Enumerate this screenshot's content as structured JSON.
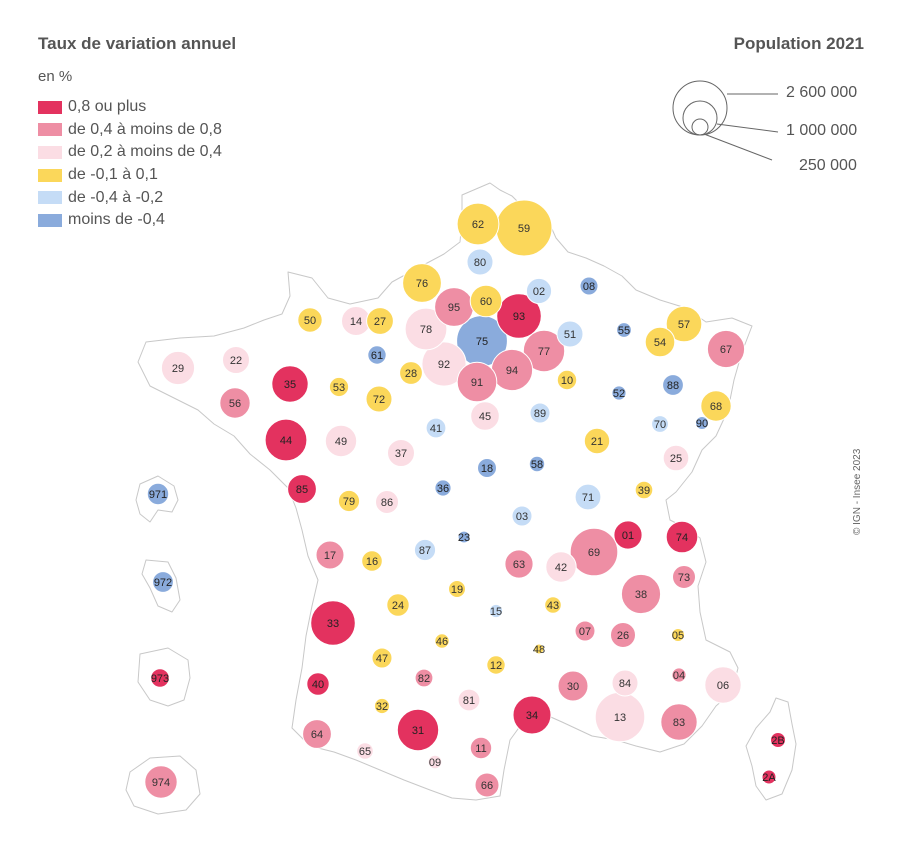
{
  "title": "Taux de variation annuel",
  "unit": "en %",
  "legend": [
    {
      "label": "0,8 ou plus",
      "color": "#e3325f"
    },
    {
      "label": "de 0,4 à moins de 0,8",
      "color": "#ee8ea4"
    },
    {
      "label": "de 0,2 à moins de 0,4",
      "color": "#fbdde4"
    },
    {
      "label": "de -0,1 à 0,1",
      "color": "#fbd75a"
    },
    {
      "label": "de -0,4 à  -0,2",
      "color": "#c5dcf6"
    },
    {
      "label": "moins de -0,4",
      "color": "#8aabdc"
    }
  ],
  "population_legend": {
    "title": "Population 2021",
    "values": [
      "2 600 000",
      "1 000 000",
      "250 000"
    ]
  },
  "credit": "© IGN - Insee 2023",
  "departments": [
    {
      "code": "59",
      "cls": 3,
      "pop": 2610000
    },
    {
      "code": "62",
      "cls": 3,
      "pop": 1460000
    },
    {
      "code": "80",
      "cls": 4,
      "pop": 566000
    },
    {
      "code": "02",
      "cls": 4,
      "pop": 526000
    },
    {
      "code": "08",
      "cls": 5,
      "pop": 269000
    },
    {
      "code": "76",
      "cls": 3,
      "pop": 1250000
    },
    {
      "code": "95",
      "cls": 1,
      "pop": 1250000
    },
    {
      "code": "60",
      "cls": 3,
      "pop": 830000
    },
    {
      "code": "93",
      "cls": 0,
      "pop": 1660000
    },
    {
      "code": "78",
      "cls": 2,
      "pop": 1450000
    },
    {
      "code": "75",
      "cls": 5,
      "pop": 2140000
    },
    {
      "code": "77",
      "cls": 1,
      "pop": 1430000
    },
    {
      "code": "92",
      "cls": 2,
      "pop": 1630000
    },
    {
      "code": "94",
      "cls": 1,
      "pop": 1410000
    },
    {
      "code": "91",
      "cls": 1,
      "pop": 1310000
    },
    {
      "code": "51",
      "cls": 4,
      "pop": 566000
    },
    {
      "code": "55",
      "cls": 5,
      "pop": 183000
    },
    {
      "code": "57",
      "cls": 3,
      "pop": 1050000
    },
    {
      "code": "54",
      "cls": 3,
      "pop": 733000
    },
    {
      "code": "67",
      "cls": 1,
      "pop": 1150000
    },
    {
      "code": "50",
      "cls": 3,
      "pop": 495000
    },
    {
      "code": "14",
      "cls": 2,
      "pop": 697000
    },
    {
      "code": "27",
      "cls": 3,
      "pop": 600000
    },
    {
      "code": "61",
      "cls": 5,
      "pop": 279000
    },
    {
      "code": "29",
      "cls": 2,
      "pop": 920000
    },
    {
      "code": "22",
      "cls": 2,
      "pop": 610000
    },
    {
      "code": "35",
      "cls": 0,
      "pop": 1100000
    },
    {
      "code": "56",
      "cls": 1,
      "pop": 765000
    },
    {
      "code": "53",
      "cls": 3,
      "pop": 308000
    },
    {
      "code": "72",
      "cls": 3,
      "pop": 566000
    },
    {
      "code": "28",
      "cls": 3,
      "pop": 431000
    },
    {
      "code": "10",
      "cls": 3,
      "pop": 311000
    },
    {
      "code": "52",
      "cls": 5,
      "pop": 170000
    },
    {
      "code": "88",
      "cls": 5,
      "pop": 362000
    },
    {
      "code": "68",
      "cls": 3,
      "pop": 767000
    },
    {
      "code": "44",
      "cls": 0,
      "pop": 1450000
    },
    {
      "code": "49",
      "cls": 2,
      "pop": 820000
    },
    {
      "code": "45",
      "cls": 2,
      "pop": 681000
    },
    {
      "code": "41",
      "cls": 4,
      "pop": 329000
    },
    {
      "code": "89",
      "cls": 4,
      "pop": 335000
    },
    {
      "code": "21",
      "cls": 3,
      "pop": 535000
    },
    {
      "code": "70",
      "cls": 4,
      "pop": 234000
    },
    {
      "code": "90",
      "cls": 5,
      "pop": 141000
    },
    {
      "code": "37",
      "cls": 2,
      "pop": 611000
    },
    {
      "code": "18",
      "cls": 5,
      "pop": 298000
    },
    {
      "code": "58",
      "cls": 5,
      "pop": 199000
    },
    {
      "code": "25",
      "cls": 2,
      "pop": 545000
    },
    {
      "code": "85",
      "cls": 0,
      "pop": 690000
    },
    {
      "code": "79",
      "cls": 3,
      "pop": 375000
    },
    {
      "code": "86",
      "cls": 2,
      "pop": 437000
    },
    {
      "code": "36",
      "cls": 5,
      "pop": 217000
    },
    {
      "code": "71",
      "cls": 4,
      "pop": 551000
    },
    {
      "code": "39",
      "cls": 3,
      "pop": 259000
    },
    {
      "code": "03",
      "cls": 4,
      "pop": 335000
    },
    {
      "code": "17",
      "cls": 1,
      "pop": 657000
    },
    {
      "code": "87",
      "cls": 4,
      "pop": 372000
    },
    {
      "code": "23",
      "cls": 5,
      "pop": 116000
    },
    {
      "code": "01",
      "cls": 0,
      "pop": 660000
    },
    {
      "code": "74",
      "cls": 0,
      "pop": 835000
    },
    {
      "code": "69",
      "cls": 1,
      "pop": 1890000
    },
    {
      "code": "16",
      "cls": 3,
      "pop": 352000
    },
    {
      "code": "63",
      "cls": 1,
      "pop": 663000
    },
    {
      "code": "42",
      "cls": 2,
      "pop": 767000
    },
    {
      "code": "73",
      "cls": 1,
      "pop": 440000
    },
    {
      "code": "19",
      "cls": 3,
      "pop": 241000
    },
    {
      "code": "38",
      "cls": 1,
      "pop": 1280000
    },
    {
      "code": "24",
      "cls": 3,
      "pop": 414000
    },
    {
      "code": "15",
      "cls": 4,
      "pop": 144000
    },
    {
      "code": "43",
      "cls": 3,
      "pop": 228000
    },
    {
      "code": "33",
      "cls": 0,
      "pop": 1650000
    },
    {
      "code": "46",
      "cls": 3,
      "pop": 174000
    },
    {
      "code": "07",
      "cls": 1,
      "pop": 330000
    },
    {
      "code": "26",
      "cls": 1,
      "pop": 520000
    },
    {
      "code": "05",
      "cls": 3,
      "pop": 141000
    },
    {
      "code": "48",
      "cls": 3,
      "pop": 77000
    },
    {
      "code": "47",
      "cls": 3,
      "pop": 331000
    },
    {
      "code": "12",
      "cls": 3,
      "pop": 280000
    },
    {
      "code": "84",
      "cls": 2,
      "pop": 562000
    },
    {
      "code": "04",
      "cls": 1,
      "pop": 166000
    },
    {
      "code": "06",
      "cls": 2,
      "pop": 1100000
    },
    {
      "code": "40",
      "cls": 0,
      "pop": 420000
    },
    {
      "code": "82",
      "cls": 1,
      "pop": 263000
    },
    {
      "code": "30",
      "cls": 1,
      "pop": 752000
    },
    {
      "code": "32",
      "cls": 3,
      "pop": 191000
    },
    {
      "code": "81",
      "cls": 2,
      "pop": 392000
    },
    {
      "code": "34",
      "cls": 0,
      "pop": 1200000
    },
    {
      "code": "13",
      "cls": 2,
      "pop": 2050000
    },
    {
      "code": "83",
      "cls": 1,
      "pop": 1100000
    },
    {
      "code": "31",
      "cls": 0,
      "pop": 1430000
    },
    {
      "code": "64",
      "cls": 1,
      "pop": 690000
    },
    {
      "code": "65",
      "cls": 2,
      "pop": 230000
    },
    {
      "code": "11",
      "cls": 1,
      "pop": 378000
    },
    {
      "code": "09",
      "cls": 2,
      "pop": 155000
    },
    {
      "code": "66",
      "cls": 1,
      "pop": 482000
    },
    {
      "code": "2B",
      "cls": 0,
      "pop": 185000
    },
    {
      "code": "2A",
      "cls": 0,
      "pop": 162000
    },
    {
      "code": "971",
      "cls": 5,
      "pop": 384000
    },
    {
      "code": "972",
      "cls": 5,
      "pop": 360000
    },
    {
      "code": "973",
      "cls": 0,
      "pop": 286000
    },
    {
      "code": "974",
      "cls": 1,
      "pop": 870000
    }
  ]
}
